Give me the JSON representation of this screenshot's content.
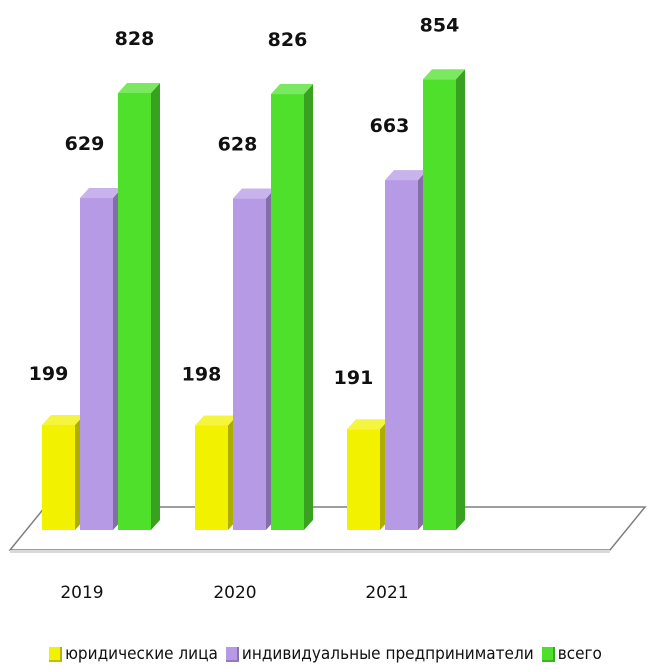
{
  "chart_data": {
    "type": "bar",
    "categories": [
      "2019",
      "2020",
      "2021"
    ],
    "series": [
      {
        "name": "юридические лица",
        "values": [
          199,
          198,
          191
        ],
        "color": "#f2f200"
      },
      {
        "name": "индивидуальные предприниматели",
        "values": [
          629,
          628,
          663
        ],
        "color": "#b69ae6"
      },
      {
        "name": "всего",
        "values": [
          828,
          826,
          854
        ],
        "color": "#4fe02c"
      }
    ],
    "legend_position": "bottom",
    "grid": false,
    "style": "3d"
  }
}
